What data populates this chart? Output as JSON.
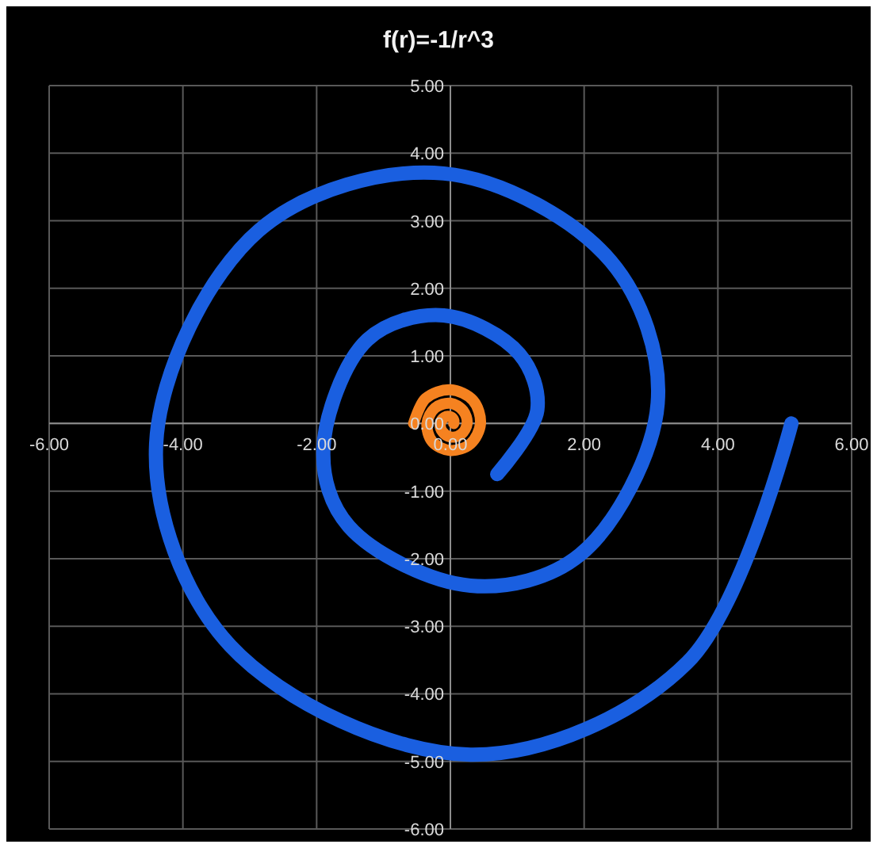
{
  "chart_data": {
    "type": "line",
    "title": "f(r)=-1/r^3",
    "series": [
      {
        "color": "#1a5fe0",
        "x": [
          5.1,
          3.54,
          0.3,
          -3.29,
          -4.4,
          -2.86,
          -0.1,
          2.4,
          3.1,
          1.94,
          0.3,
          -1.52,
          -1.9,
          -1.24,
          -0.1,
          1.03,
          1.3,
          0.7
        ],
        "values": [
          0,
          -3.54,
          -4.9,
          -3.29,
          -0.3,
          2.86,
          3.7,
          2.4,
          0.3,
          -1.94,
          -2.4,
          -1.52,
          -0.4,
          1.24,
          1.6,
          1.03,
          0.2,
          -0.75
        ]
      },
      {
        "color": "#f58220",
        "x": [
          0.05,
          0.05,
          0,
          -0.09,
          -0.15,
          -0.12,
          0,
          0.16,
          0.25,
          0.19,
          0,
          -0.23,
          -0.35,
          -0.27,
          0,
          0.3,
          0.45,
          0.34,
          0,
          -0.37,
          -0.55
        ],
        "values": [
          0,
          0.05,
          0.1,
          0.09,
          0,
          -0.12,
          -0.2,
          -0.16,
          0,
          0.19,
          0.3,
          0.23,
          0,
          -0.27,
          -0.4,
          -0.3,
          0,
          0.34,
          0.5,
          0.37,
          0
        ]
      }
    ],
    "xlim": [
      -6,
      6
    ],
    "ylim": [
      -6,
      5
    ],
    "xticks": [
      {
        "value": -6,
        "label": "-6.00"
      },
      {
        "value": -4,
        "label": "-4.00"
      },
      {
        "value": -2,
        "label": "-2.00"
      },
      {
        "value": 0,
        "label": "0.00"
      },
      {
        "value": 2,
        "label": "2.00"
      },
      {
        "value": 4,
        "label": "4.00"
      },
      {
        "value": 6,
        "label": "6.00"
      }
    ],
    "yticks": [
      {
        "value": -6,
        "label": "-6.00"
      },
      {
        "value": -5,
        "label": "-5.00"
      },
      {
        "value": -4,
        "label": "-4.00"
      },
      {
        "value": -3,
        "label": "-3.00"
      },
      {
        "value": -2,
        "label": "-2.00"
      },
      {
        "value": -1,
        "label": "-1.00"
      },
      {
        "value": 0,
        "label": "0.00"
      },
      {
        "value": 1,
        "label": "1.00"
      },
      {
        "value": 2,
        "label": "2.00"
      },
      {
        "value": 3,
        "label": "3.00"
      },
      {
        "value": 4,
        "label": "4.00"
      },
      {
        "value": 5,
        "label": "5.00"
      }
    ],
    "grid": true,
    "marker": "none",
    "line_style": "solid"
  }
}
